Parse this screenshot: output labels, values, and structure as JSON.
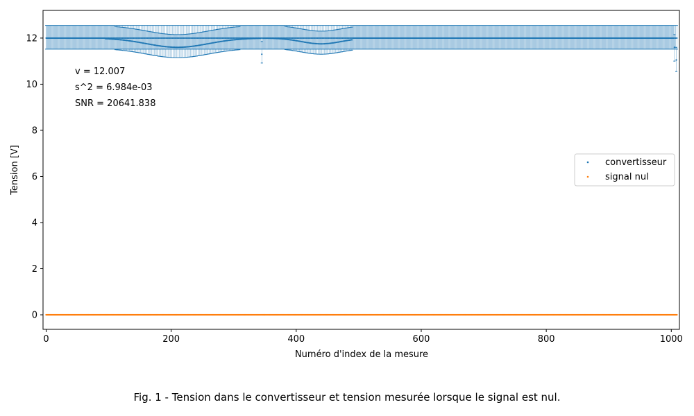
{
  "caption": "Fig. 1 - Tension dans le convertisseur et tension mesurée lorsque le signal est nul.",
  "chart_data": {
    "type": "scatter",
    "title": "",
    "xlabel": "Numéro d'index de la mesure",
    "ylabel": "Tension [V]",
    "xlim": [
      -5,
      1013
    ],
    "ylim": [
      -0.63,
      13.2
    ],
    "xticks": [
      0,
      200,
      400,
      600,
      800,
      1000
    ],
    "yticks": [
      0,
      2,
      4,
      6,
      8,
      10,
      12
    ],
    "grid": false,
    "legend": {
      "position": "center-right",
      "entries": [
        "convertisseur",
        "signal nul"
      ]
    },
    "annotations": [
      "v = 12.007",
      "s^2 = 6.984e-03",
      "SNR = 20641.838"
    ],
    "series": [
      {
        "name": "convertisseur",
        "color": "#1f77b4",
        "n_points": 1010,
        "typical_value": 12.0,
        "error_bar": {
          "upper": 12.55,
          "lower": 11.52
        },
        "dip_segments": [
          {
            "from_index": 95,
            "to_index": 490,
            "min_value": 11.6,
            "min_at_index": 210,
            "secondary_min": 11.75,
            "secondary_min_at_index": 440
          }
        ],
        "outliers": [
          {
            "index": 345,
            "value": 11.3,
            "err_low": 10.92
          },
          {
            "index": 1005,
            "value": 11.6,
            "err_low": 11.0
          },
          {
            "index": 1008,
            "value": 11.05,
            "err_low": 10.55
          }
        ]
      },
      {
        "name": "signal nul",
        "color": "#ff7f0e",
        "n_points": 1010,
        "typical_value": 0.0
      }
    ]
  }
}
